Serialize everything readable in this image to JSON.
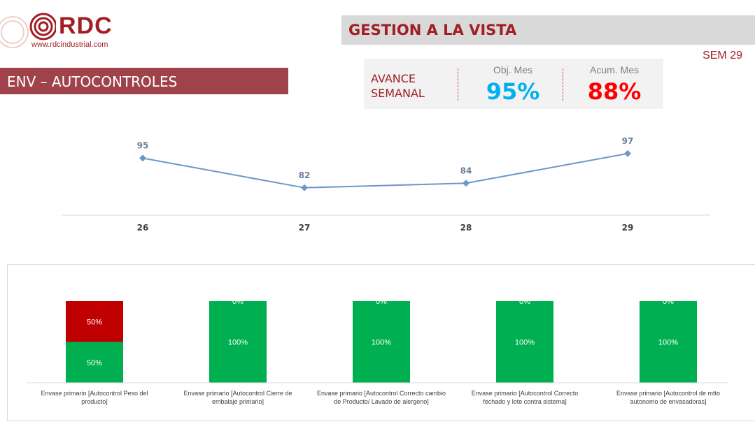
{
  "logo": {
    "name": "RDC",
    "url": "www.rdcindustrial.com"
  },
  "header": {
    "title": "GESTION A LA VISTA",
    "week": "SEM 29"
  },
  "section": {
    "title": "ENV – AUTOCONTROLES"
  },
  "kpi": {
    "label_line1": "AVANCE",
    "label_line2": "SEMANAL",
    "obj_label": "Obj. Mes",
    "obj_value": "95%",
    "acum_label": "Acum. Mes",
    "acum_value": "88%"
  },
  "colors": {
    "brand": "#a01e24",
    "line": "#6b97c8",
    "ok_green": "#00b050",
    "bad_red": "#c00000",
    "obj_blue": "#00b0f0",
    "acum_red": "#ff0000"
  },
  "chart_data": [
    {
      "type": "line",
      "title": "",
      "x": [
        "26",
        "27",
        "28",
        "29"
      ],
      "series": [
        {
          "values": [
            95,
            82,
            84,
            97
          ]
        }
      ],
      "data_labels": true,
      "grid": false
    },
    {
      "type": "bar",
      "stacked": true,
      "percent": true,
      "title": "",
      "categories": [
        [
          "Envase primario [Autocontrol Peso del",
          "producto]"
        ],
        [
          "Envase primario [Autocontrol Cierre de",
          "embalaje primario]"
        ],
        [
          "Envase primario [Autocontrol Correcto cambio",
          "de Producto/ Lavado de alergeno]"
        ],
        [
          "Envase primario [Autocontrol Correcto",
          "fechado y lote contra sistema]"
        ],
        [
          "Envase primario [Autocontrol de mtto",
          "autonomo de envasadoras]"
        ]
      ],
      "series": [
        {
          "color": "#00b050",
          "values": [
            50,
            100,
            100,
            100,
            100
          ],
          "labels": [
            "50%",
            "100%",
            "100%",
            "100%",
            "100%"
          ]
        },
        {
          "color": "#c00000",
          "values": [
            50,
            0,
            0,
            0,
            0
          ],
          "labels": [
            "50%",
            "0%",
            "0%",
            "0%",
            "0%"
          ]
        }
      ],
      "legend": "none",
      "grid": false
    }
  ]
}
